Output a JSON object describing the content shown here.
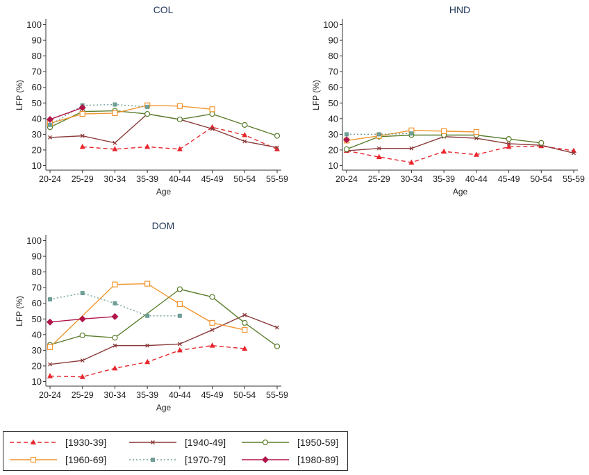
{
  "chart_data": [
    {
      "type": "line",
      "title": "COL",
      "xlabel": "Age",
      "ylabel": "LFP (%)",
      "categories": [
        "20-24",
        "25-29",
        "30-34",
        "35-39",
        "40-44",
        "45-49",
        "50-54",
        "55-59"
      ],
      "yticks": [
        10,
        20,
        30,
        40,
        50,
        60,
        70,
        80,
        90,
        100
      ],
      "ylim": [
        8,
        102
      ],
      "series": [
        {
          "name": "[1930-39]",
          "values": [
            null,
            22,
            20.5,
            22,
            20.5,
            34.5,
            29.5,
            20.5
          ]
        },
        {
          "name": "[1940-49]",
          "values": [
            28,
            29,
            24.5,
            43,
            39.5,
            33.5,
            25.5,
            21.5
          ]
        },
        {
          "name": "[1950-59]",
          "values": [
            34.5,
            44.5,
            45,
            43,
            39.5,
            43,
            36,
            29
          ]
        },
        {
          "name": "[1960-69]",
          "values": [
            37,
            43,
            43.5,
            48.5,
            48,
            46,
            null,
            null
          ]
        },
        {
          "name": "[1970-79]",
          "values": [
            36,
            48.5,
            49,
            47.5,
            null,
            null,
            null,
            null
          ]
        },
        {
          "name": "[1980-89]",
          "values": [
            39.5,
            47,
            null,
            null,
            null,
            null,
            null,
            null
          ]
        }
      ]
    },
    {
      "type": "line",
      "title": "HND",
      "xlabel": "Age",
      "ylabel": "LFP (%)",
      "categories": [
        "20-24",
        "25-29",
        "30-34",
        "35-39",
        "40-44",
        "45-49",
        "50-54",
        "55-59"
      ],
      "yticks": [
        10,
        20,
        30,
        40,
        50,
        60,
        70,
        80,
        90,
        100
      ],
      "ylim": [
        8,
        102
      ],
      "series": [
        {
          "name": "[1930-39]",
          "values": [
            19.5,
            15.5,
            12,
            19,
            17,
            22,
            22.5,
            19.5
          ]
        },
        {
          "name": "[1940-49]",
          "values": [
            19.5,
            21,
            21,
            28.5,
            27.5,
            24,
            23,
            18
          ]
        },
        {
          "name": "[1950-59]",
          "values": [
            20.5,
            28.5,
            29.5,
            29.5,
            29.5,
            27,
            24.5,
            null
          ]
        },
        {
          "name": "[1960-69]",
          "values": [
            26,
            29,
            32.5,
            32,
            31.5,
            null,
            null,
            null
          ]
        },
        {
          "name": "[1970-79]",
          "values": [
            30,
            30,
            30.5,
            null,
            null,
            null,
            null,
            null
          ]
        },
        {
          "name": "[1980-89]",
          "values": [
            26.5,
            null,
            null,
            null,
            null,
            null,
            null,
            null
          ]
        }
      ]
    },
    {
      "type": "line",
      "title": "DOM",
      "xlabel": "Age",
      "ylabel": "LFP (%)",
      "categories": [
        "20-24",
        "25-29",
        "30-34",
        "35-39",
        "40-44",
        "45-49",
        "50-54",
        "55-59"
      ],
      "yticks": [
        10,
        20,
        30,
        40,
        50,
        60,
        70,
        80,
        90,
        100
      ],
      "ylim": [
        8,
        102
      ],
      "series": [
        {
          "name": "[1930-39]",
          "values": [
            13.5,
            13,
            18.5,
            22.5,
            30,
            33,
            31,
            null
          ]
        },
        {
          "name": "[1940-49]",
          "values": [
            21,
            23.5,
            33,
            33,
            34,
            43,
            52.5,
            44.5
          ]
        },
        {
          "name": "[1950-59]",
          "values": [
            33.5,
            39.5,
            38,
            null,
            69,
            64,
            47.5,
            32.5
          ]
        },
        {
          "name": "[1960-69]",
          "values": [
            32,
            null,
            72,
            72.5,
            59.5,
            47.5,
            43,
            null
          ]
        },
        {
          "name": "[1970-79]",
          "values": [
            62.5,
            66.5,
            60,
            52,
            52,
            null,
            null,
            null
          ]
        },
        {
          "name": "[1980-89]",
          "values": [
            48,
            50,
            51.5,
            null,
            null,
            null,
            null,
            null
          ]
        }
      ]
    }
  ],
  "legend": {
    "entries": [
      {
        "label": "[1930-39]",
        "color": "#e8262d",
        "dash": "6,4",
        "marker": "triangle"
      },
      {
        "label": "[1940-49]",
        "color": "#8b3a3a",
        "dash": "",
        "marker": "x"
      },
      {
        "label": "[1950-59]",
        "color": "#5a7d2c",
        "dash": "",
        "marker": "circle"
      },
      {
        "label": "[1960-69]",
        "color": "#f0962f",
        "dash": "",
        "marker": "square"
      },
      {
        "label": "[1970-79]",
        "color": "#6e9e96",
        "dash": "2,3",
        "marker": "filled-square"
      },
      {
        "label": "[1980-89]",
        "color": "#b0154a",
        "dash": "",
        "marker": "diamond"
      }
    ]
  }
}
